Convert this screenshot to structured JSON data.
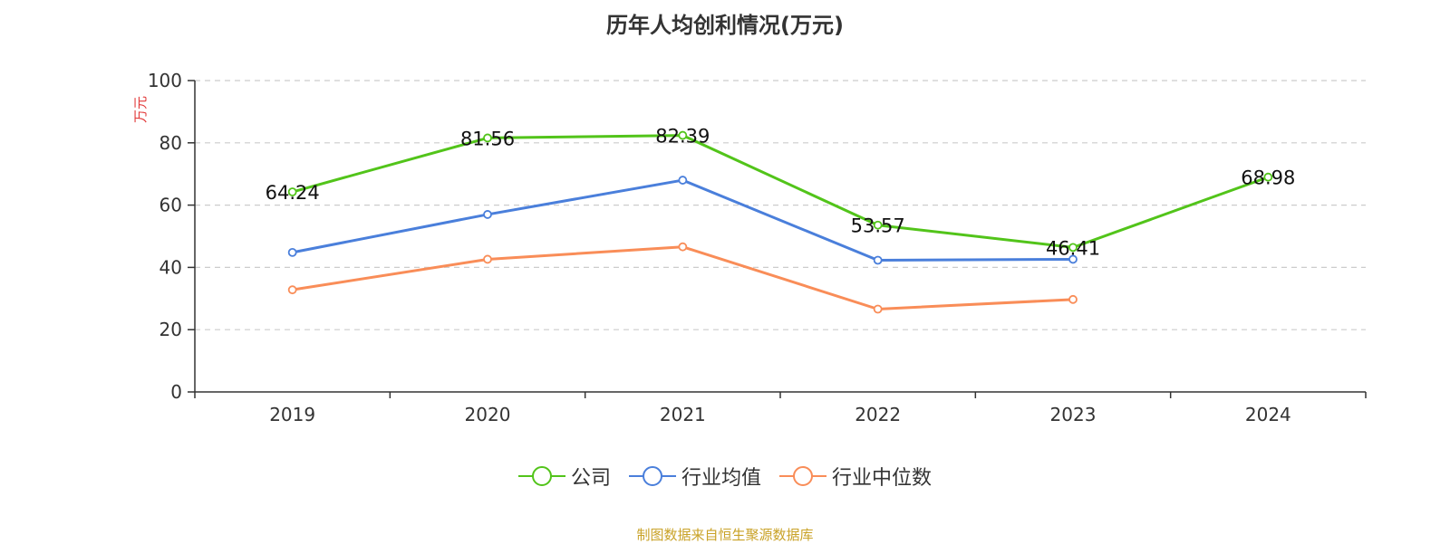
{
  "chart_data": {
    "type": "line",
    "title": "历年人均创利情况(万元)",
    "ylabel": "万元",
    "xlabel": "",
    "ylim": [
      0,
      100
    ],
    "yticks": [
      0,
      20,
      40,
      60,
      80,
      100
    ],
    "grid": true,
    "categories": [
      "2019",
      "2020",
      "2021",
      "2022",
      "2023",
      "2024"
    ],
    "series": [
      {
        "name": "公司",
        "color": "#52c41a",
        "values": [
          64.24,
          81.56,
          82.39,
          53.57,
          46.41,
          68.98
        ],
        "show_labels": true
      },
      {
        "name": "行业均值",
        "color": "#4a7fdb",
        "values": [
          44.8,
          57.0,
          68.0,
          42.3,
          42.6,
          null
        ],
        "show_labels": false
      },
      {
        "name": "行业中位数",
        "color": "#f98d58",
        "values": [
          32.8,
          42.6,
          46.6,
          26.6,
          29.7,
          null
        ],
        "show_labels": false
      }
    ],
    "legend_position": "bottom-center"
  },
  "source_note": "制图数据来自恒生聚源数据库"
}
